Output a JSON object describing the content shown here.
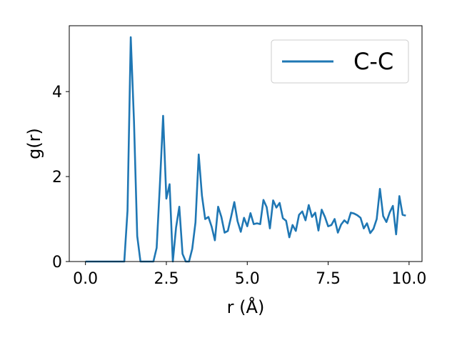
{
  "chart_data": {
    "type": "line",
    "xlabel": "r (Å)",
    "ylabel": "g(r)",
    "xlim": [
      -0.5,
      10.4
    ],
    "ylim": [
      0,
      5.55
    ],
    "xticks": [
      0.0,
      2.5,
      5.0,
      7.5,
      10.0
    ],
    "xtick_labels": [
      "0.0",
      "2.5",
      "5.0",
      "7.5",
      "10.0"
    ],
    "yticks": [
      0,
      2,
      4
    ],
    "ytick_labels": [
      "0",
      "2",
      "4"
    ],
    "grid": false,
    "legend_position": "top-right",
    "series": [
      {
        "name": "C-C",
        "color": "#1f77b4",
        "x": [
          0.0,
          0.1,
          0.2,
          0.3,
          0.4,
          0.5,
          0.6,
          0.7,
          0.8,
          0.9,
          1.0,
          1.1,
          1.2,
          1.3,
          1.4,
          1.5,
          1.6,
          1.7,
          1.8,
          1.9,
          2.0,
          2.1,
          2.2,
          2.3,
          2.4,
          2.5,
          2.6,
          2.7,
          2.8,
          2.9,
          3.0,
          3.1,
          3.2,
          3.3,
          3.4,
          3.5,
          3.6,
          3.7,
          3.8,
          3.9,
          4.0,
          4.1,
          4.2,
          4.3,
          4.4,
          4.5,
          4.6,
          4.7,
          4.8,
          4.9,
          5.0,
          5.1,
          5.2,
          5.3,
          5.4,
          5.5,
          5.6,
          5.7,
          5.8,
          5.9,
          6.0,
          6.1,
          6.2,
          6.3,
          6.4,
          6.5,
          6.6,
          6.7,
          6.8,
          6.9,
          7.0,
          7.1,
          7.2,
          7.3,
          7.4,
          7.5,
          7.6,
          7.7,
          7.8,
          7.9,
          8.0,
          8.1,
          8.2,
          8.3,
          8.4,
          8.5,
          8.6,
          8.7,
          8.8,
          8.9,
          9.0,
          9.1,
          9.2,
          9.3,
          9.4,
          9.5,
          9.6,
          9.7,
          9.8,
          9.9
        ],
        "y": [
          0,
          0,
          0,
          0,
          0,
          0,
          0,
          0,
          0,
          0,
          0,
          0,
          0,
          1.2,
          5.28,
          3.3,
          0.6,
          0,
          0,
          0,
          0,
          0,
          0.32,
          1.8,
          3.43,
          1.48,
          1.82,
          0,
          0.8,
          1.29,
          0.18,
          0,
          0,
          0.3,
          0.92,
          2.52,
          1.55,
          1.0,
          1.05,
          0.82,
          0.5,
          1.29,
          1.05,
          0.68,
          0.72,
          1.05,
          1.4,
          0.95,
          0.7,
          1.03,
          0.83,
          1.14,
          0.88,
          0.9,
          0.88,
          1.45,
          1.28,
          0.78,
          1.44,
          1.27,
          1.38,
          1.02,
          0.96,
          0.57,
          0.86,
          0.72,
          1.1,
          1.18,
          0.97,
          1.33,
          1.05,
          1.15,
          0.73,
          1.22,
          1.05,
          0.83,
          0.86,
          1.0,
          0.68,
          0.87,
          0.97,
          0.9,
          1.15,
          1.13,
          1.09,
          1.03,
          0.78,
          0.9,
          0.67,
          0.77,
          1.0,
          1.71,
          1.07,
          0.93,
          1.15,
          1.31,
          0.64,
          1.54,
          1.1,
          1.08
        ]
      }
    ]
  }
}
